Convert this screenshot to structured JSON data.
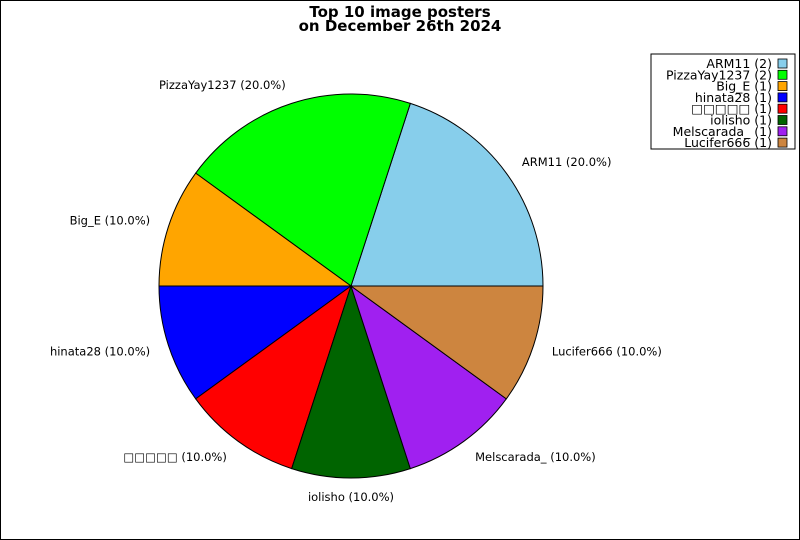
{
  "chart_data": {
    "type": "pie",
    "title": [
      "Top 10 image posters",
      "on December 26th 2024"
    ],
    "start_angle_deg": 0,
    "direction": "counterclockwise",
    "slices": [
      {
        "name": "ARM11",
        "count": 2,
        "percent": 20.0,
        "label": "ARM11 (20.0%)",
        "legend": "ARM11 (2)",
        "color": "#87CEEB"
      },
      {
        "name": "PizzaYay1237",
        "count": 2,
        "percent": 20.0,
        "label": "PizzaYay1237 (20.0%)",
        "legend": "PizzaYay1237 (2)",
        "color": "#00FF00"
      },
      {
        "name": "Big_E",
        "count": 1,
        "percent": 10.0,
        "label": "Big_E (10.0%)",
        "legend": "Big_E (1)",
        "color": "#FFA500"
      },
      {
        "name": "hinata28",
        "count": 1,
        "percent": 10.0,
        "label": "hinata28 (10.0%)",
        "legend": "hinata28 (1)",
        "color": "#0000FF"
      },
      {
        "name": "□□□□□",
        "count": 1,
        "percent": 10.0,
        "label": "□□□□□ (10.0%)",
        "legend": "□□□□□ (1)",
        "color": "#FF0000"
      },
      {
        "name": "iolisho",
        "count": 1,
        "percent": 10.0,
        "label": "iolisho (10.0%)",
        "legend": "iolisho (1)",
        "color": "#006400"
      },
      {
        "name": "Melscarada_",
        "count": 1,
        "percent": 10.0,
        "label": "Melscarada_ (10.0%)",
        "legend": "Melscarada_ (1)",
        "color": "#A020F0"
      },
      {
        "name": "Lucifer666",
        "count": 1,
        "percent": 10.0,
        "label": "Lucifer666 (10.0%)",
        "legend": "Lucifer666 (1)",
        "color": "#CD853F"
      }
    ],
    "legend_position": "top-right"
  }
}
